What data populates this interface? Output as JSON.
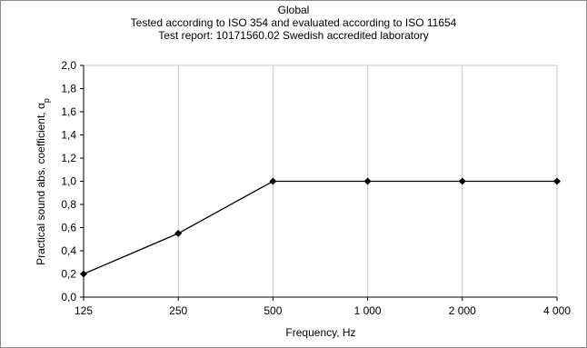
{
  "chart_data": {
    "type": "line",
    "title": "Global",
    "subtitle_1": "Tested according to ISO 354 and evaluated according to ISO 11654",
    "subtitle_2": "Test report: 10171560.02 Swedish accredited laboratory",
    "xlabel": "Frequency, Hz",
    "ylabel": "Practical sound abs. coefficient, α",
    "ylabel_subscript": "p",
    "categories": [
      "125",
      "250",
      "500",
      "1 000",
      "2 000",
      "4 000"
    ],
    "series": [
      {
        "values": [
          0.2,
          0.55,
          1.0,
          1.0,
          1.0,
          1.0
        ]
      }
    ],
    "ylim": [
      0,
      2
    ],
    "yticks": [
      "0,0",
      "0,2",
      "0,4",
      "0,6",
      "0,8",
      "1,0",
      "1,2",
      "1,4",
      "1,6",
      "1,8",
      "2,0"
    ],
    "grid": "vertical",
    "line_color": "#000000",
    "marker": "diamond"
  }
}
